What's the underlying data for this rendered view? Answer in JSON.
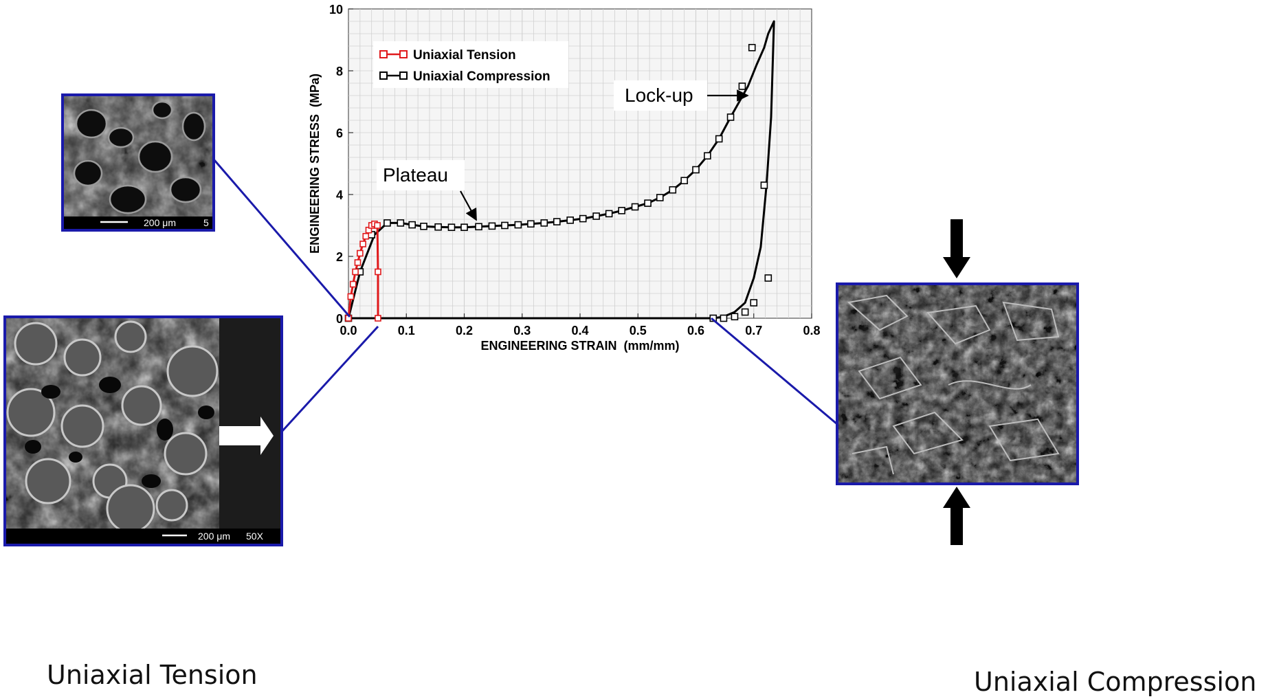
{
  "chart_data": {
    "type": "line",
    "xlabel": "ENGINEERING STRAIN  (mm/mm)",
    "ylabel": "ENGINEERING STRESS  (MPa)",
    "xlim": [
      0,
      0.8
    ],
    "ylim": [
      0,
      10
    ],
    "x_ticks": [
      "0.0",
      "0.1",
      "0.2",
      "0.3",
      "0.4",
      "0.5",
      "0.6",
      "0.7",
      "0.8"
    ],
    "y_ticks": [
      "0",
      "2",
      "4",
      "6",
      "8",
      "10"
    ],
    "grid": true,
    "legend_position": "top-left",
    "series": [
      {
        "name": "Uniaxial Tension",
        "color": "#e0191b",
        "marker": "open-square",
        "x": [
          0.0,
          0.004,
          0.008,
          0.012,
          0.016,
          0.02,
          0.025,
          0.03,
          0.035,
          0.04,
          0.045,
          0.05,
          0.051,
          0.051
        ],
        "y": [
          0.0,
          0.7,
          1.1,
          1.5,
          1.8,
          2.1,
          2.4,
          2.65,
          2.85,
          3.0,
          3.05,
          3.0,
          1.5,
          0.0
        ]
      },
      {
        "name": "Uniaxial Compression",
        "color": "#000000",
        "marker": "open-square",
        "x": [
          0.0,
          0.02,
          0.045,
          0.067,
          0.09,
          0.11,
          0.13,
          0.155,
          0.178,
          0.2,
          0.225,
          0.248,
          0.27,
          0.293,
          0.315,
          0.338,
          0.36,
          0.383,
          0.405,
          0.428,
          0.45,
          0.472,
          0.495,
          0.517,
          0.538,
          0.56,
          0.58,
          0.6,
          0.62,
          0.64,
          0.66,
          0.675,
          0.69,
          0.705,
          0.718,
          0.725,
          0.735,
          0.73,
          0.722,
          0.712,
          0.7,
          0.685,
          0.667,
          0.648,
          0.63,
          0.0
        ],
        "y": [
          0.0,
          1.5,
          2.7,
          3.08,
          3.08,
          3.02,
          2.97,
          2.95,
          2.94,
          2.94,
          2.96,
          2.98,
          3.0,
          3.02,
          3.05,
          3.08,
          3.12,
          3.17,
          3.22,
          3.3,
          3.38,
          3.48,
          3.6,
          3.72,
          3.9,
          4.15,
          4.45,
          4.8,
          5.25,
          5.8,
          6.5,
          7.0,
          7.5,
          8.2,
          8.75,
          9.2,
          9.6,
          6.5,
          4.3,
          2.3,
          1.3,
          0.5,
          0.2,
          0.05,
          0.0,
          0.0
        ],
        "marker_x": [
          0.0,
          0.02,
          0.04,
          0.067,
          0.09,
          0.11,
          0.13,
          0.155,
          0.178,
          0.2,
          0.225,
          0.248,
          0.27,
          0.293,
          0.315,
          0.338,
          0.36,
          0.383,
          0.405,
          0.428,
          0.45,
          0.472,
          0.495,
          0.517,
          0.538,
          0.56,
          0.58,
          0.6,
          0.62,
          0.64,
          0.66,
          0.68,
          0.697,
          0.718,
          0.725,
          0.7,
          0.685,
          0.667,
          0.648,
          0.63
        ],
        "marker_y": [
          0.0,
          1.5,
          2.7,
          3.08,
          3.08,
          3.02,
          2.97,
          2.95,
          2.94,
          2.94,
          2.96,
          2.98,
          3.0,
          3.02,
          3.05,
          3.08,
          3.12,
          3.17,
          3.22,
          3.3,
          3.38,
          3.48,
          3.6,
          3.72,
          3.9,
          4.15,
          4.45,
          4.8,
          5.25,
          5.8,
          6.5,
          7.5,
          8.75,
          4.3,
          1.3,
          0.5,
          0.2,
          0.05,
          0.0,
          0.0
        ]
      }
    ],
    "annotations": [
      {
        "text": "Plateau",
        "x": 0.06,
        "y": 4.5,
        "arrow_to": [
          0.22,
          3.0
        ]
      },
      {
        "text": "Lock-up",
        "x": 0.48,
        "y": 7.3,
        "arrow_to": [
          0.69,
          7.3
        ]
      }
    ]
  },
  "micrographs": [
    {
      "label": "200 μm",
      "magnification_label": "5",
      "connects_to": [
        0.0,
        0.0
      ]
    },
    {
      "label": "200 μm",
      "magnification_label": "50X",
      "connects_to": [
        0.05,
        0.0
      ]
    },
    {
      "label": "",
      "magnification_label": "",
      "connects_to": [
        0.63,
        0.0
      ]
    }
  ],
  "captions": {
    "tension": "Uniaxial Tension",
    "compression": "Uniaxial Compression"
  },
  "colors": {
    "connector": "#1a1aaa",
    "frame": "#1a1aaa",
    "tension": "#e0191b",
    "compression": "#000000",
    "grid": "#d0d0d0",
    "plot_bg": "#f5f5f5"
  }
}
